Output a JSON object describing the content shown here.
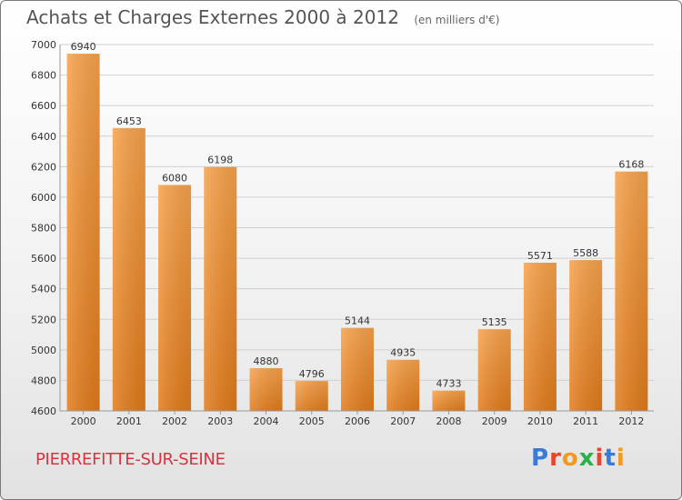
{
  "header": {
    "title": "Achats et Charges Externes 2000 à 2012",
    "subtitle": "(en milliers d'€)"
  },
  "footer": {
    "city": "PIERREFITTE-SUR-SEINE",
    "logo": "Proxiti",
    "logo_colors": [
      "#3a7bd5",
      "#e8452c",
      "#f29a1f",
      "#2bb04a",
      "#e8452c",
      "#3a7bd5",
      "#f29a1f"
    ]
  },
  "chart_data": {
    "type": "bar",
    "title": "Achats et Charges Externes 2000 à 2012",
    "subtitle": "(en milliers d'€)",
    "categories": [
      "2000",
      "2001",
      "2002",
      "2003",
      "2004",
      "2005",
      "2006",
      "2007",
      "2008",
      "2009",
      "2010",
      "2011",
      "2012"
    ],
    "values": [
      6940,
      6453,
      6080,
      6198,
      4880,
      4796,
      5144,
      4935,
      4733,
      5135,
      5571,
      5588,
      6168
    ],
    "ylim": [
      4600,
      7000
    ],
    "yticks": [
      4600,
      4800,
      5000,
      5200,
      5400,
      5600,
      5800,
      6000,
      6200,
      6400,
      6600,
      6800,
      7000
    ],
    "grid": true,
    "xlabel": "",
    "ylabel": "",
    "bar_color": "#f08a2a"
  }
}
